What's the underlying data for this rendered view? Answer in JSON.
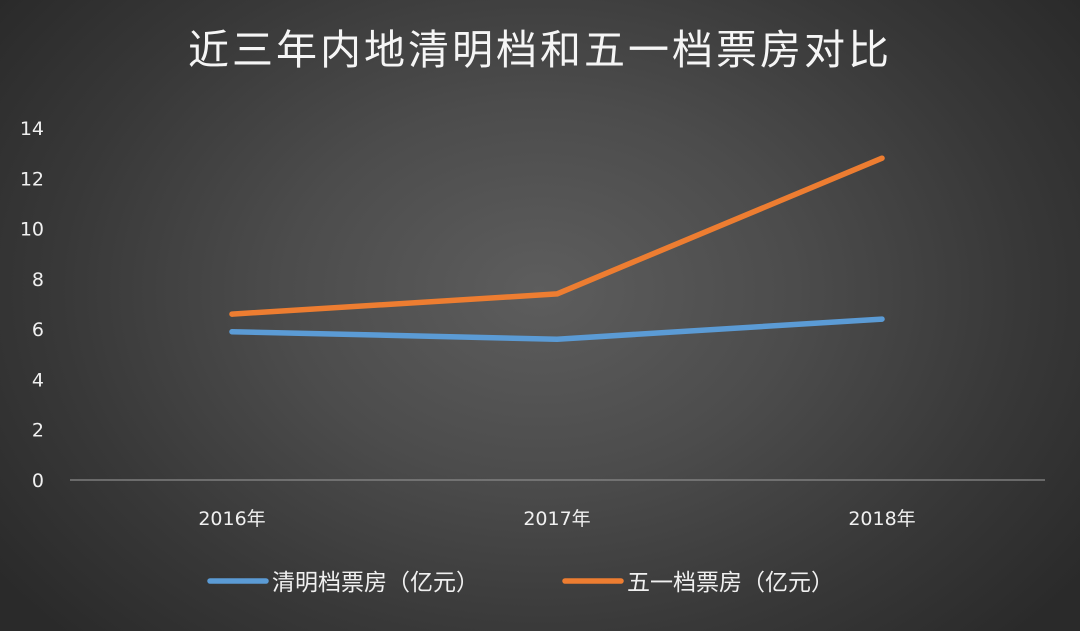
{
  "chart_data": {
    "type": "line",
    "title": "近三年内地清明档和五一档票房对比",
    "xlabel": "",
    "ylabel": "",
    "categories": [
      "2016年",
      "2017年",
      "2018年"
    ],
    "ylim": [
      0,
      14
    ],
    "yticks": [
      0,
      2,
      4,
      6,
      8,
      10,
      12,
      14
    ],
    "grid": false,
    "legend_position": "bottom",
    "series": [
      {
        "name": "清明档票房（亿元）",
        "color": "#5b9bd5",
        "values": [
          5.9,
          5.6,
          6.4
        ]
      },
      {
        "name": "五一档票房（亿元）",
        "color": "#ed7d31",
        "values": [
          6.6,
          7.4,
          12.8
        ]
      }
    ]
  }
}
